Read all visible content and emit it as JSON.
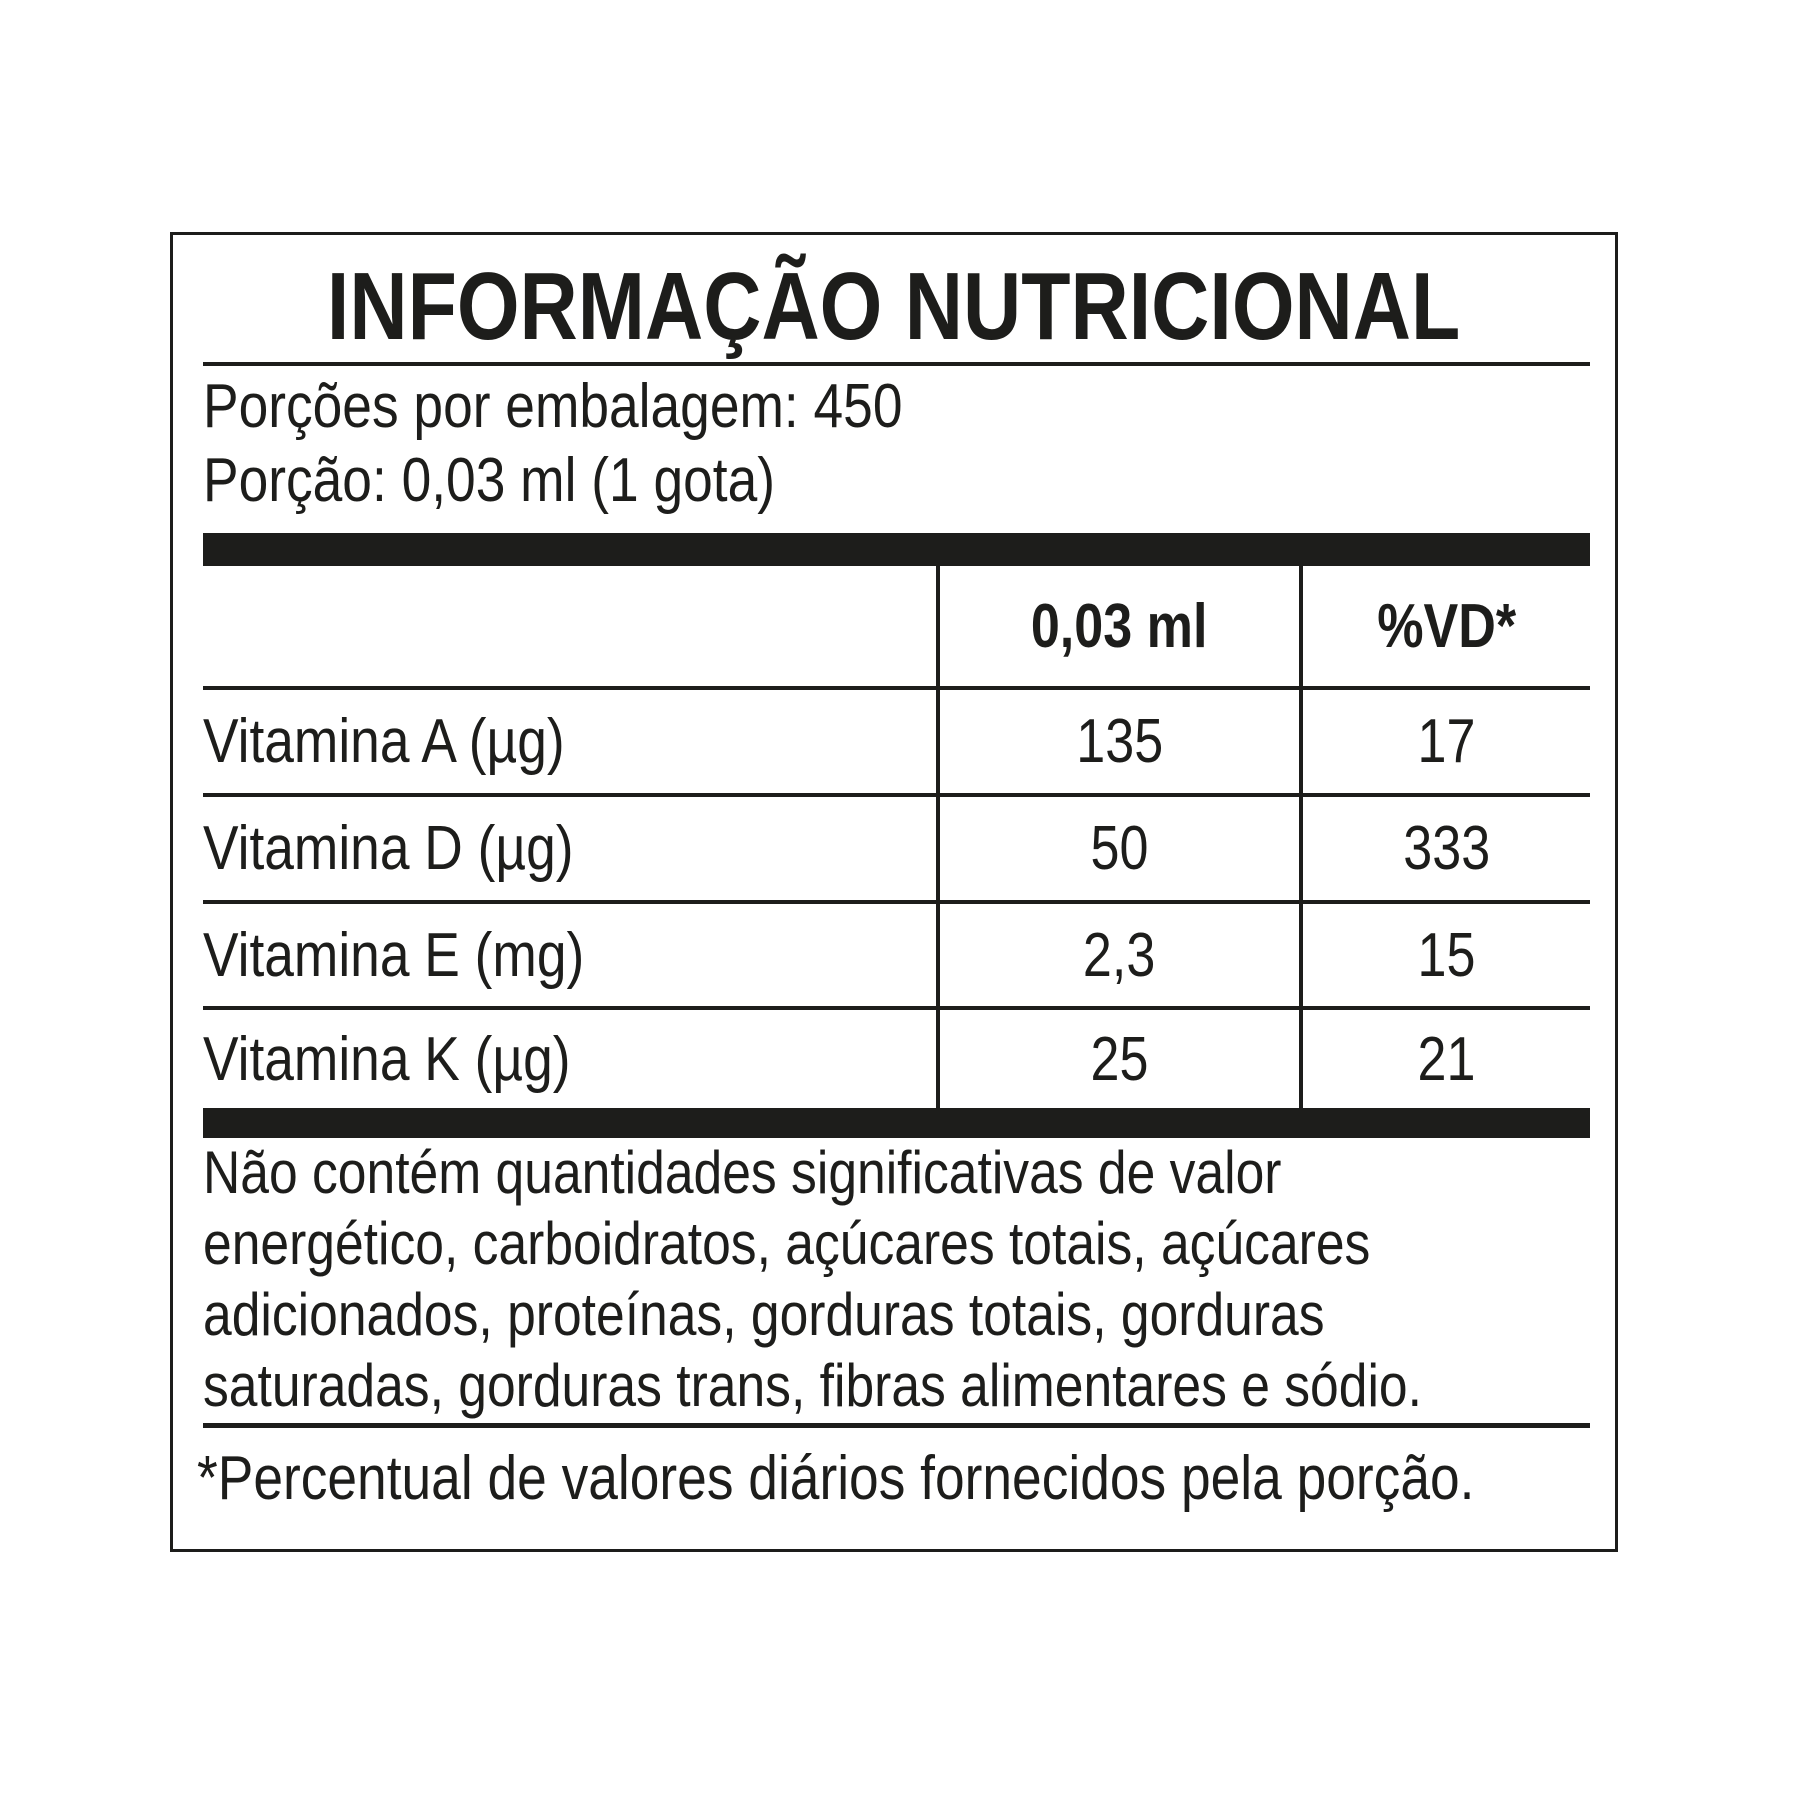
{
  "label": {
    "title": "INFORMAÇÃO NUTRICIONAL",
    "servings_line": "Porções por embalagem: 450",
    "serving_line": "Porção: 0,03 ml (1 gota)",
    "table": {
      "col_headers": [
        "0,03 ml",
        "%VD*"
      ],
      "rows": [
        {
          "name": "Vitamina A (µg)",
          "amount": "135",
          "vd": "17"
        },
        {
          "name": "Vitamina D (µg)",
          "amount": "50",
          "vd": "333"
        },
        {
          "name": "Vitamina E (mg)",
          "amount": "2,3",
          "vd": "15"
        },
        {
          "name": "Vitamina K (µg)",
          "amount": "25",
          "vd": "21"
        }
      ]
    },
    "note_lines": [
      "Não contém quantidades significativas de valor",
      "energético, carboidratos, açúcares totais, açúcares",
      "adicionados, proteínas, gorduras totais, gorduras",
      "saturadas, gorduras trans, fibras alimentares e sódio."
    ],
    "footnote": "*Percentual de valores diários fornecidos pela porção.",
    "colors": {
      "text": "#1d1d1b",
      "background": "#ffffff",
      "bar": "#1d1d1b"
    }
  }
}
